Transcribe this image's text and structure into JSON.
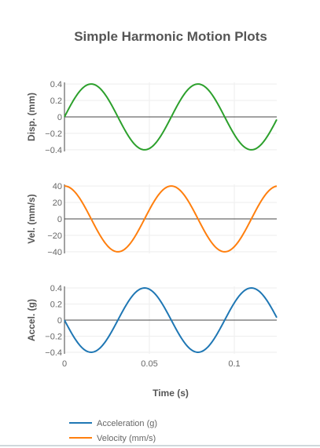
{
  "chart_data": {
    "type": "line",
    "title": "Simple Harmonic Motion Plots",
    "xlabel": "Time (s)",
    "xlim": [
      0,
      0.125
    ],
    "x_tick_labels": [
      "0",
      "0.05",
      "0.1"
    ],
    "x_ticks": [
      0,
      0.05,
      0.1
    ],
    "frequency_hz": 15.9,
    "subplots": [
      {
        "name": "displacement",
        "ylabel": "Disp. (mm)",
        "ylim": [
          -0.42,
          0.42
        ],
        "y_ticks": [
          0.4,
          0.2,
          0,
          -0.2,
          -0.4
        ],
        "y_tick_labels": [
          "0.4",
          "0.2",
          "0",
          "−0.2",
          "−0.4"
        ],
        "series": [
          {
            "amplitude": 0.4,
            "form": "sin",
            "color": "#2ca02c"
          }
        ]
      },
      {
        "name": "velocity",
        "ylabel": "Vel. (mm/s)",
        "ylim": [
          -42,
          42
        ],
        "y_ticks": [
          40,
          20,
          0,
          -20,
          -40
        ],
        "y_tick_labels": [
          "40",
          "20",
          "0",
          "−20",
          "−40"
        ],
        "series": [
          {
            "name": "Velocity (mm/s)",
            "amplitude": 40,
            "form": "cos",
            "color": "#ff7f0e"
          }
        ]
      },
      {
        "name": "acceleration",
        "ylabel": "Accel. (g)",
        "ylim": [
          -0.42,
          0.42
        ],
        "y_ticks": [
          0.4,
          0.2,
          0,
          -0.2,
          -0.4
        ],
        "y_tick_labels": [
          "0.4",
          "0.2",
          "0",
          "−0.2",
          "−0.4"
        ],
        "series": [
          {
            "name": "Acceleration (g)",
            "amplitude": -0.4,
            "form": "sin",
            "color": "#1f77b4"
          }
        ]
      }
    ],
    "legend": [
      {
        "label": "Acceleration (g)",
        "color": "#1f77b4"
      },
      {
        "label": "Velocity (mm/s)",
        "color": "#ff7f0e"
      }
    ],
    "legend_position": "bottom-left",
    "grid": true
  }
}
